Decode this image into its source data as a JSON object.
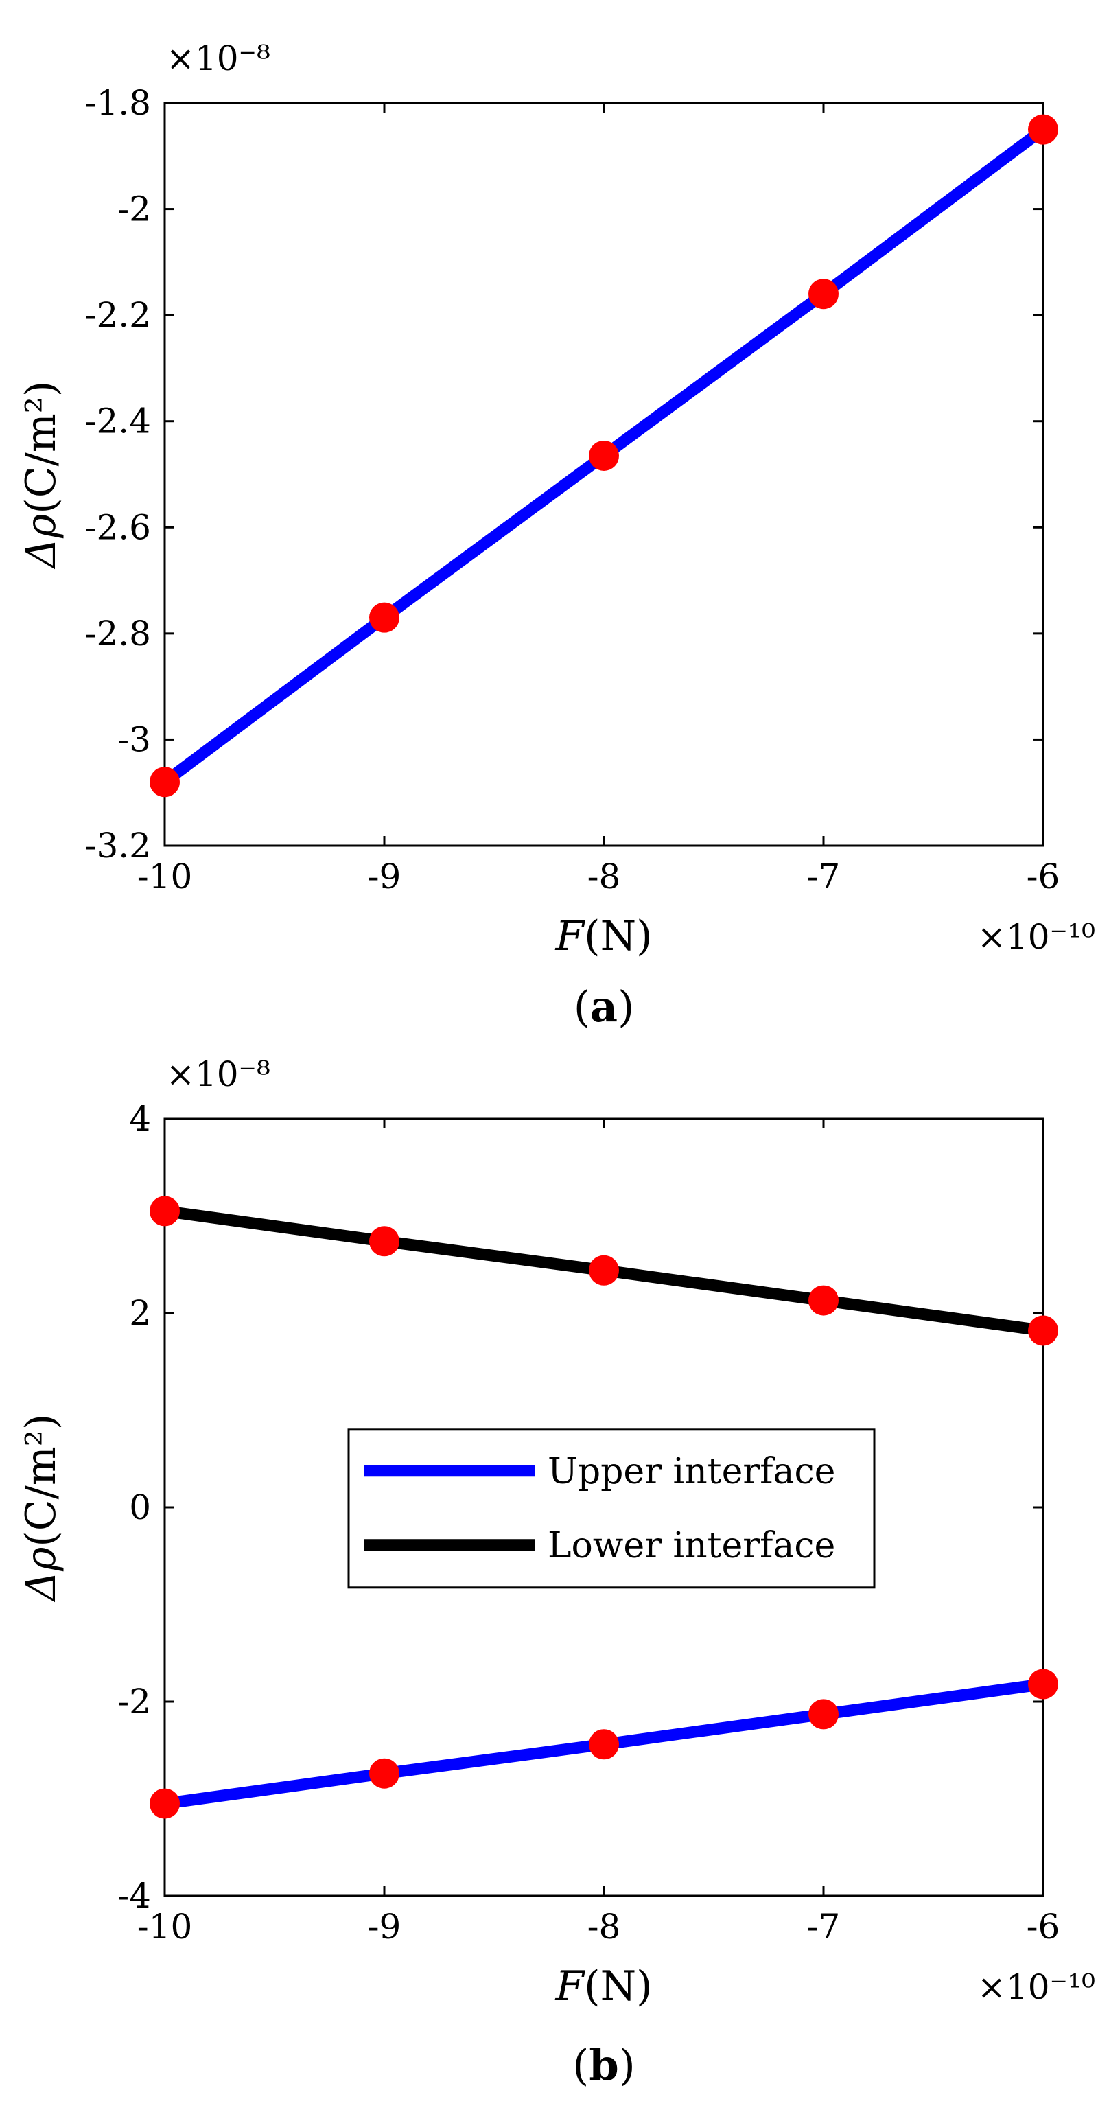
{
  "chart_data": [
    {
      "panel_label": "(a)",
      "panel_letter": "a",
      "type": "line",
      "xlabel": "F(N)",
      "xlabel_var": "F",
      "xlabel_unit": "(N)",
      "ylabel": "Δρ(C/m²)",
      "ylabel_var": "Δρ",
      "ylabel_unit": "(C/m²)",
      "x_exponent_label": "×10⁻¹⁰",
      "y_exponent_label": "×10⁻⁸",
      "xlim": [
        -10,
        -6
      ],
      "ylim": [
        -3.2,
        -1.8
      ],
      "xticks": [
        -10,
        -9,
        -8,
        -7,
        -6
      ],
      "xtick_labels": [
        "-10",
        "-9",
        "-8",
        "-7",
        "-6"
      ],
      "yticks": [
        -3.2,
        -3.0,
        -2.8,
        -2.6,
        -2.4,
        -2.2,
        -2.0,
        -1.8
      ],
      "ytick_labels": [
        "-3.2",
        "-3",
        "-2.8",
        "-2.6",
        "-2.4",
        "-2.2",
        "-2",
        "-1.8"
      ],
      "series": [
        {
          "name": "Δρ",
          "line_color": "#0000ff",
          "marker_color": "#ff0000",
          "x": [
            -10,
            -9,
            -8,
            -7,
            -6
          ],
          "values": [
            -3.08,
            -2.77,
            -2.465,
            -2.16,
            -1.85
          ]
        }
      ],
      "legend": null
    },
    {
      "panel_label": "(b)",
      "panel_letter": "b",
      "type": "line",
      "xlabel": "F(N)",
      "xlabel_var": "F",
      "xlabel_unit": "(N)",
      "ylabel": "Δρ(C/m²)",
      "ylabel_var": "Δρ",
      "ylabel_unit": "(C/m²)",
      "x_exponent_label": "×10⁻¹⁰",
      "y_exponent_label": "×10⁻⁸",
      "xlim": [
        -10,
        -6
      ],
      "ylim": [
        -4,
        4
      ],
      "xticks": [
        -10,
        -9,
        -8,
        -7,
        -6
      ],
      "xtick_labels": [
        "-10",
        "-9",
        "-8",
        "-7",
        "-6"
      ],
      "yticks": [
        -4,
        -2,
        0,
        2,
        4
      ],
      "ytick_labels": [
        "-4",
        "-2",
        "0",
        "2",
        "4"
      ],
      "series": [
        {
          "name": "Upper interface",
          "line_color": "#0000ff",
          "marker_color": "#ff0000",
          "x": [
            -10,
            -9,
            -8,
            -7,
            -6
          ],
          "values": [
            -3.05,
            -2.74,
            -2.44,
            -2.13,
            -1.82
          ]
        },
        {
          "name": "Lower interface",
          "line_color": "#000000",
          "marker_color": "#ff0000",
          "x": [
            -10,
            -9,
            -8,
            -7,
            -6
          ],
          "values": [
            3.05,
            2.74,
            2.44,
            2.13,
            1.82
          ]
        }
      ],
      "legend": {
        "placement": "center",
        "entries": [
          "Upper interface",
          "Lower interface"
        ]
      }
    }
  ]
}
